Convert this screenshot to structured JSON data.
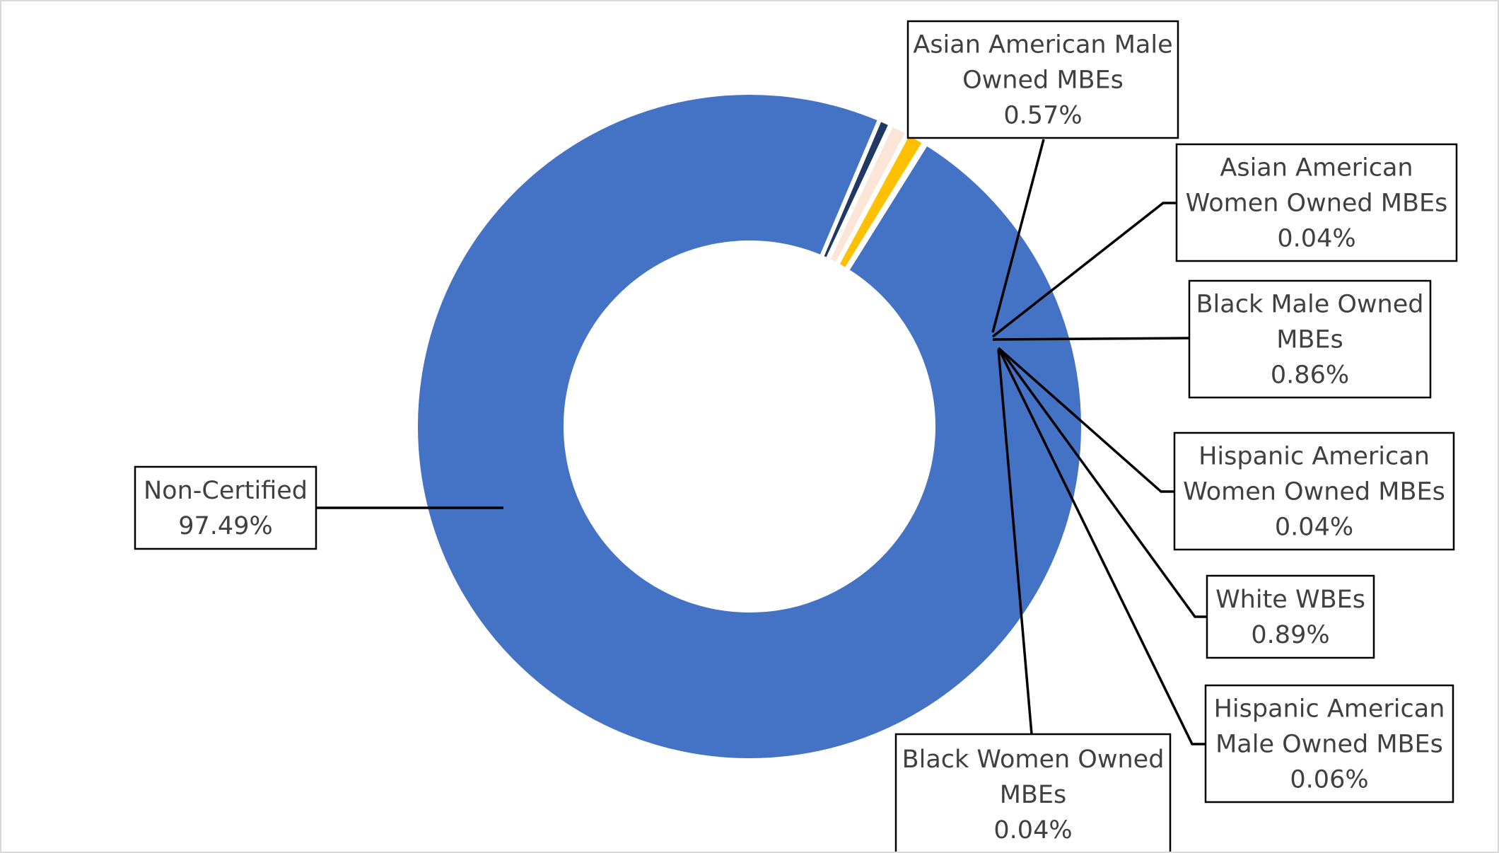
{
  "chart_data": {
    "type": "pie",
    "variant": "donut",
    "start_angle_deg": 67,
    "categories": [
      "Asian American Male Owned MBEs",
      "Asian American Women Owned MBEs",
      "Black Male Owned MBEs",
      "Hispanic American Women Owned MBEs",
      "White WBEs",
      "Hispanic American Male Owned MBEs",
      "Black Women Owned MBEs",
      "Non-Certified"
    ],
    "values": [
      0.57,
      0.04,
      0.86,
      0.04,
      0.89,
      0.06,
      0.04,
      97.49
    ],
    "value_labels": [
      "0.57%",
      "0.04%",
      "0.86%",
      "0.04%",
      "0.89%",
      "0.06%",
      "0.04%",
      "97.49%"
    ],
    "colors": [
      "#203864",
      "#4472c4",
      "#fbe5d6",
      "#ed7d31",
      "#ffc000",
      "#a9d18e",
      "#5b9bd5",
      "#4472c4"
    ],
    "label_lines": [
      [
        "Asian American Male",
        "Owned MBEs",
        "0.57%"
      ],
      [
        "Asian American",
        "Women Owned MBEs",
        "0.04%"
      ],
      [
        "Black Male Owned",
        "MBEs",
        "0.86%"
      ],
      [
        "Hispanic American",
        "Women Owned MBEs",
        "0.04%"
      ],
      [
        "White WBEs",
        "0.89%"
      ],
      [
        "Hispanic American",
        "Male Owned MBEs",
        "0.06%"
      ],
      [
        "Black Women Owned",
        "MBEs",
        "0.04%"
      ],
      [
        "Non-Certified",
        "97.49%"
      ]
    ],
    "title": "",
    "legend": "none",
    "slice_separator_color": "#ffffff"
  }
}
